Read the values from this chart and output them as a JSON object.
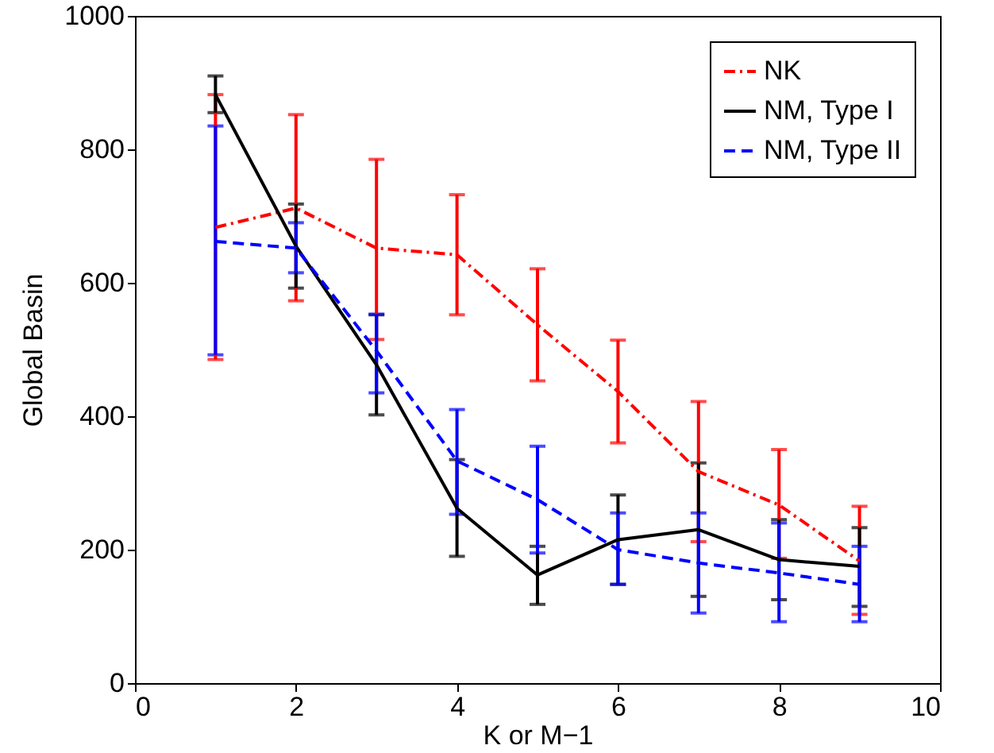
{
  "chart_data": {
    "type": "line",
    "xlabel": "K or M−1",
    "ylabel": "Global Basin",
    "x": [
      1,
      2,
      3,
      4,
      5,
      6,
      7,
      8,
      9
    ],
    "xlim": [
      0,
      10
    ],
    "xticks": [
      0,
      2,
      4,
      6,
      8,
      10
    ],
    "ylim": [
      0,
      1000
    ],
    "yticks": [
      0,
      200,
      400,
      600,
      800,
      1000
    ],
    "legend": "top right",
    "grid": false,
    "marker": "none",
    "series": [
      {
        "name": "NK",
        "color": "#ff0000",
        "line_style": "dotted",
        "values": [
          683,
          712,
          652,
          642,
          537,
          437,
          317,
          267,
          183
        ],
        "errors": [
          [
            485,
            882
          ],
          [
            573,
            852
          ],
          [
            515,
            785
          ],
          [
            552,
            732
          ],
          [
            453,
            621
          ],
          [
            360,
            514
          ],
          [
            212,
            422
          ],
          [
            187,
            350
          ],
          [
            103,
            265
          ]
        ]
      },
      {
        "name": "NM, Type I",
        "color": "#000000",
        "line_style": "solid",
        "values": [
          882,
          655,
          477,
          262,
          162,
          215,
          230,
          185,
          175
        ],
        "errors": [
          [
            855,
            910
          ],
          [
            592,
            718
          ],
          [
            402,
            552
          ],
          [
            190,
            335
          ],
          [
            118,
            205
          ],
          [
            148,
            282
          ],
          [
            130,
            330
          ],
          [
            125,
            245
          ],
          [
            115,
            233
          ]
        ]
      },
      {
        "name": "NM, Type II",
        "color": "#0000ff",
        "line_style": "dashed",
        "values": [
          662,
          652,
          498,
          333,
          275,
          200,
          180,
          165,
          148
        ],
        "errors": [
          [
            492,
            835
          ],
          [
            615,
            690
          ],
          [
            435,
            553
          ],
          [
            253,
            410
          ],
          [
            195,
            355
          ],
          [
            148,
            255
          ],
          [
            105,
            255
          ],
          [
            92,
            240
          ],
          [
            92,
            205
          ]
        ]
      }
    ]
  }
}
